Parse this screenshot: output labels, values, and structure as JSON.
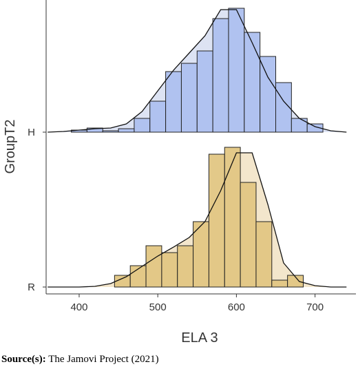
{
  "chart_data": {
    "type": "ridgeline",
    "x_label": "ELA 3",
    "y_label": "GroupT2",
    "xlim": [
      358,
      752
    ],
    "xticks": [
      400,
      500,
      600,
      700
    ],
    "series": [
      {
        "name": "H",
        "color": "#adc0ef",
        "density_color": "#dde3f3",
        "bins": [
          390,
          410,
          430,
          450,
          470,
          490,
          510,
          530,
          550,
          570,
          590,
          610,
          630,
          650,
          670,
          690,
          710
        ],
        "counts": [
          3,
          6,
          2,
          5,
          20,
          45,
          88,
          100,
          118,
          165,
          180,
          145,
          110,
          72,
          20,
          12
        ],
        "density_x": [
          360,
          380,
          400,
          420,
          440,
          460,
          480,
          500,
          520,
          540,
          560,
          580,
          600,
          620,
          640,
          660,
          680,
          700,
          720,
          740
        ],
        "density_y": [
          0,
          1,
          3,
          5,
          6,
          12,
          30,
          60,
          90,
          115,
          140,
          178,
          178,
          130,
          80,
          45,
          20,
          8,
          2,
          0
        ]
      },
      {
        "name": "R",
        "color": "#e2c683",
        "density_color": "#f3e6cc",
        "bins": [
          445,
          465,
          485,
          505,
          525,
          545,
          565,
          585,
          605,
          625,
          645,
          665,
          685
        ],
        "counts": [
          17,
          31,
          60,
          50,
          60,
          95,
          193,
          203,
          152,
          95,
          10,
          17
        ],
        "density_x": [
          360,
          380,
          400,
          420,
          440,
          460,
          480,
          500,
          520,
          540,
          560,
          580,
          600,
          620,
          640,
          660,
          680,
          700,
          720,
          740
        ],
        "density_y": [
          0,
          0,
          0,
          1,
          5,
          15,
          30,
          45,
          58,
          72,
          95,
          140,
          195,
          195,
          120,
          35,
          8,
          2,
          0,
          0
        ]
      }
    ],
    "source_label": "Source(s):",
    "source": "The Jamovi Project (2021)"
  }
}
